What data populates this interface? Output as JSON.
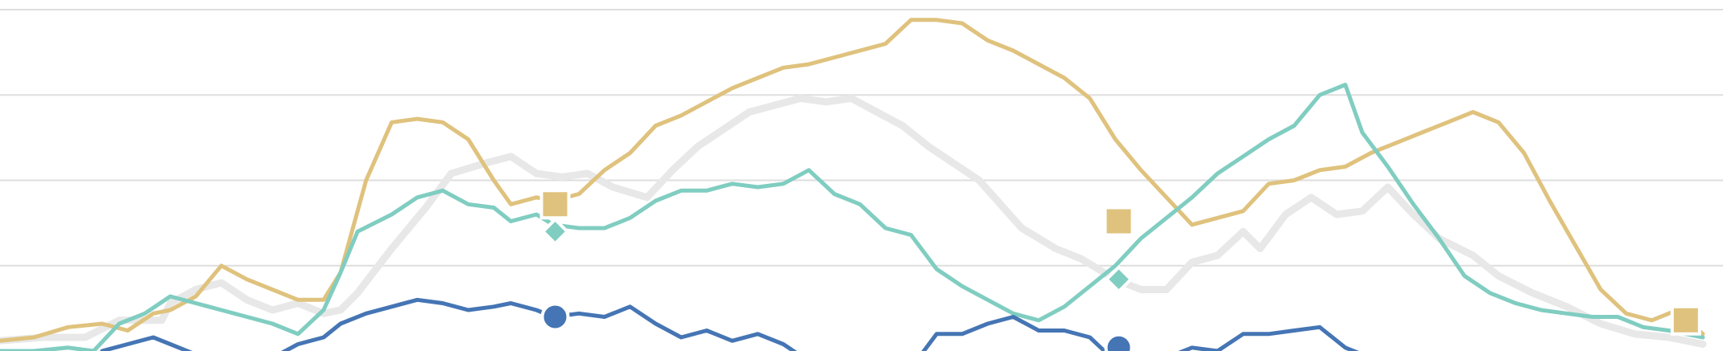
{
  "chart_data": {
    "type": "line",
    "title": "",
    "xlabel": "",
    "ylabel": "",
    "x_range": [
      0,
      1
    ],
    "ylim": [
      0,
      100
    ],
    "y_gridlines": [
      25,
      50,
      75,
      100
    ],
    "grid": true,
    "legend": "none",
    "series": [
      {
        "key": "ghost",
        "color": "#e8e8e8",
        "marker": "none",
        "x": [
          0,
          0.025,
          0.05,
          0.07,
          0.095,
          0.1,
          0.115,
          0.13,
          0.145,
          0.16,
          0.175,
          0.19,
          0.2,
          0.21,
          0.23,
          0.25,
          0.265,
          0.285,
          0.3,
          0.315,
          0.33,
          0.345,
          0.36,
          0.38,
          0.395,
          0.41,
          0.425,
          0.44,
          0.455,
          0.47,
          0.485,
          0.5,
          0.515,
          0.53,
          0.545,
          0.56,
          0.575,
          0.6,
          0.62,
          0.635,
          0.655,
          0.67,
          0.685,
          0.7,
          0.715,
          0.73,
          0.74,
          0.755,
          0.77,
          0.785,
          0.8,
          0.815,
          0.83,
          0.845,
          0.865,
          0.88,
          0.9,
          0.92,
          0.94,
          0.96,
          0.98,
          1.0
        ],
        "y": [
          3,
          4,
          4,
          9,
          9,
          14,
          18,
          20,
          15,
          12,
          14,
          11,
          12,
          17,
          30,
          42,
          52,
          55,
          57,
          52,
          51,
          52,
          48,
          45,
          53,
          60,
          65,
          70,
          72,
          74,
          73,
          74,
          70,
          66,
          60,
          55,
          50,
          36,
          30,
          27,
          21,
          18,
          18,
          26,
          28,
          35,
          30,
          40,
          45,
          40,
          41,
          48,
          40,
          33,
          28,
          22,
          17,
          13,
          8,
          5,
          4,
          2
        ]
      },
      {
        "key": "gold",
        "color": "#dfc27d",
        "marker": "square",
        "x": [
          0,
          0.02,
          0.04,
          0.06,
          0.075,
          0.09,
          0.1,
          0.115,
          0.13,
          0.145,
          0.16,
          0.175,
          0.19,
          0.2,
          0.215,
          0.23,
          0.245,
          0.26,
          0.275,
          0.29,
          0.3,
          0.315,
          0.325,
          0.34,
          0.355,
          0.37,
          0.385,
          0.4,
          0.415,
          0.43,
          0.445,
          0.46,
          0.475,
          0.49,
          0.505,
          0.52,
          0.535,
          0.55,
          0.565,
          0.58,
          0.595,
          0.61,
          0.625,
          0.64,
          0.655,
          0.67,
          0.685,
          0.7,
          0.715,
          0.73,
          0.745,
          0.76,
          0.775,
          0.79,
          0.805,
          0.82,
          0.835,
          0.85,
          0.865,
          0.88,
          0.895,
          0.91,
          0.925,
          0.94,
          0.955,
          0.97,
          0.985,
          1.0
        ],
        "y": [
          3,
          4,
          7,
          8,
          6,
          11,
          12,
          16,
          25,
          21,
          18,
          15,
          15,
          23,
          50,
          67,
          68,
          67,
          62,
          50,
          43,
          45,
          44,
          46,
          53,
          58,
          66,
          69,
          73,
          77,
          80,
          83,
          84,
          86,
          88,
          90,
          97,
          97,
          96,
          91,
          88,
          84,
          80,
          74,
          62,
          53,
          45,
          37,
          39,
          41,
          49,
          50,
          53,
          54,
          58,
          61,
          64,
          67,
          70,
          67,
          58,
          44,
          31,
          18,
          11,
          9,
          12,
          5
        ]
      },
      {
        "key": "teal",
        "color": "#80cdc1",
        "marker": "diamond",
        "x": [
          0,
          0.02,
          0.04,
          0.055,
          0.07,
          0.085,
          0.1,
          0.115,
          0.13,
          0.145,
          0.16,
          0.175,
          0.19,
          0.2,
          0.21,
          0.23,
          0.245,
          0.26,
          0.275,
          0.29,
          0.3,
          0.315,
          0.325,
          0.34,
          0.355,
          0.37,
          0.385,
          0.4,
          0.415,
          0.43,
          0.445,
          0.46,
          0.475,
          0.49,
          0.505,
          0.52,
          0.535,
          0.55,
          0.565,
          0.58,
          0.595,
          0.61,
          0.625,
          0.64,
          0.655,
          0.67,
          0.685,
          0.7,
          0.715,
          0.73,
          0.745,
          0.76,
          0.775,
          0.79,
          0.8,
          0.815,
          0.83,
          0.845,
          0.86,
          0.875,
          0.89,
          0.905,
          0.92,
          0.935,
          0.95,
          0.965,
          0.98,
          1.0
        ],
        "y": [
          0,
          0,
          1,
          0,
          8,
          11,
          16,
          14,
          12,
          10,
          8,
          5,
          12,
          23,
          35,
          40,
          45,
          47,
          43,
          42,
          38,
          40,
          37,
          36,
          36,
          39,
          44,
          47,
          47,
          49,
          48,
          49,
          53,
          46,
          43,
          36,
          34,
          24,
          19,
          15,
          11,
          9,
          13,
          19,
          25,
          33,
          39,
          45,
          52,
          57,
          62,
          66,
          75,
          78,
          64,
          54,
          43,
          33,
          22,
          17,
          14,
          12,
          11,
          10,
          10,
          7,
          6,
          4
        ]
      },
      {
        "key": "blue",
        "color": "#4575b4",
        "marker": "circle",
        "x": [
          0.06,
          0.075,
          0.09,
          0.1,
          0.115,
          0.13,
          0.145,
          0.16,
          0.175,
          0.19,
          0.2,
          0.215,
          0.23,
          0.245,
          0.26,
          0.275,
          0.29,
          0.3,
          0.315,
          0.325,
          0.34,
          0.355,
          0.37,
          0.385,
          0.4,
          0.415,
          0.43,
          0.445,
          0.46,
          0.475,
          0.49,
          0.505,
          0.52,
          0.535,
          0.55,
          0.565,
          0.58,
          0.595,
          0.61,
          0.625,
          0.64,
          0.655,
          0.67,
          0.685,
          0.7,
          0.715,
          0.73,
          0.745,
          0.76,
          0.775,
          0.79,
          0.8
        ],
        "y": [
          0,
          2,
          4,
          2,
          -1,
          -3,
          -1,
          -2,
          2,
          4,
          8,
          11,
          13,
          15,
          14,
          12,
          13,
          14,
          12,
          10,
          11,
          10,
          13,
          8,
          4,
          6,
          3,
          5,
          2,
          -3,
          -3,
          -1,
          -2,
          -5,
          5,
          5,
          8,
          10,
          6,
          6,
          4,
          -3,
          -2,
          -2,
          1,
          0,
          5,
          5,
          6,
          7,
          1,
          -1
        ]
      }
    ],
    "markers": [
      {
        "series": "gold",
        "shape": "square",
        "x": 0.326,
        "y": 43
      },
      {
        "series": "gold",
        "shape": "square",
        "x": 0.657,
        "y": 38
      },
      {
        "series": "gold",
        "shape": "square",
        "x": 0.99,
        "y": 9
      },
      {
        "series": "teal",
        "shape": "diamond",
        "x": 0.326,
        "y": 35
      },
      {
        "series": "teal",
        "shape": "diamond",
        "x": 0.657,
        "y": 21
      },
      {
        "series": "blue",
        "shape": "circle",
        "x": 0.326,
        "y": 10
      },
      {
        "series": "blue",
        "shape": "circle",
        "x": 0.657,
        "y": 1
      }
    ]
  }
}
